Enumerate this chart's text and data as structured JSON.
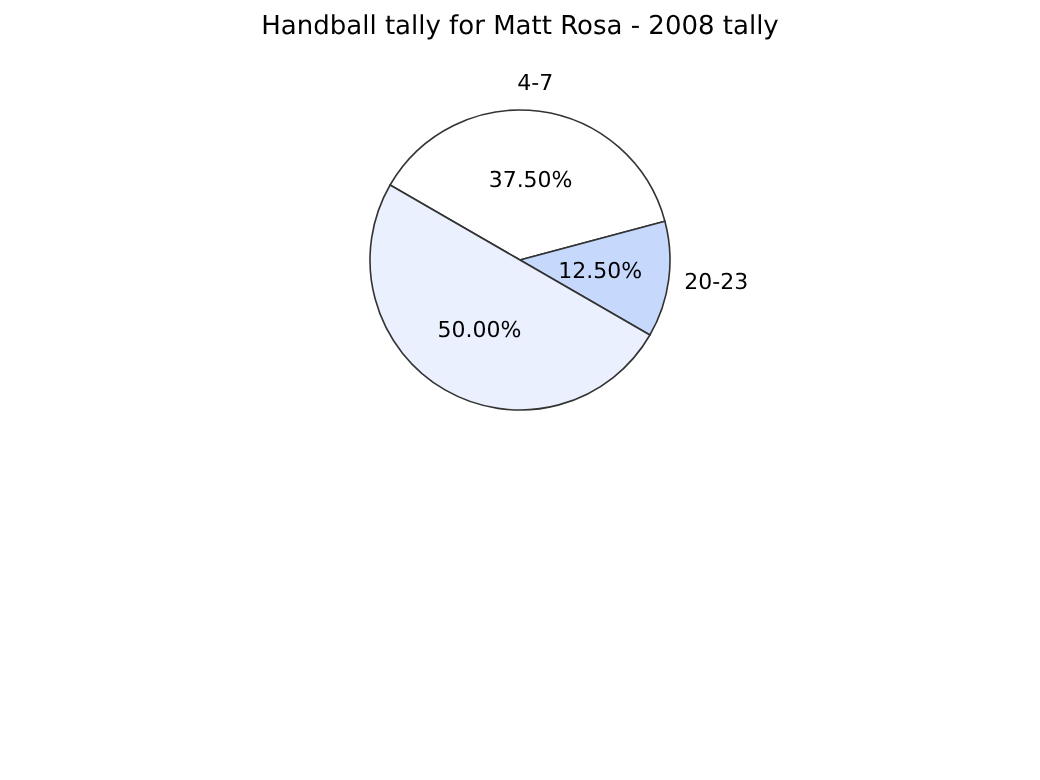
{
  "chart_data": {
    "type": "pie",
    "title": "Handball tally for Matt Rosa - 2008 tally",
    "categories": [
      "4-7",
      "20-23",
      null
    ],
    "values": [
      37.5,
      12.5,
      50
    ],
    "value_labels": [
      "37.50%",
      "12.50%",
      "50.00%"
    ],
    "colors": [
      "#ffffff",
      "#c6d9fd",
      "#eaf0fd"
    ],
    "legend": false
  }
}
